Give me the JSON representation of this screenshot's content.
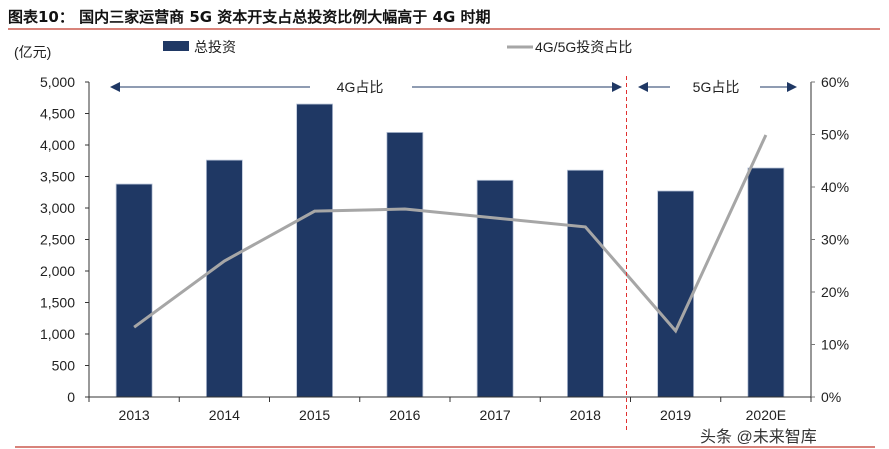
{
  "title": "图表10： 国内三家运营商 5G 资本开支占总投资比例大幅高于 4G 时期",
  "watermark": "头条 @未来智库",
  "chart_data": {
    "type": "bar+line",
    "categories": [
      "2013",
      "2014",
      "2015",
      "2016",
      "2017",
      "2018",
      "2019",
      "2020E"
    ],
    "ylabel": "(亿元)",
    "ylim": [
      0,
      5000
    ],
    "yticks": [
      "0",
      "500",
      "1,000",
      "1,500",
      "2,000",
      "2,500",
      "3,000",
      "3,500",
      "4,000",
      "4,500",
      "5,000"
    ],
    "y2lim": [
      0,
      60
    ],
    "y2ticks": [
      "0%",
      "10%",
      "20%",
      "30%",
      "40%",
      "50%",
      "60%"
    ],
    "legend_position": "top",
    "grid": false,
    "series": [
      {
        "name": "总投资",
        "type": "bar",
        "axis": "left",
        "color": "#1f3864",
        "values": [
          3380,
          3760,
          4650,
          4200,
          3440,
          3600,
          3270,
          3635
        ]
      },
      {
        "name": "4G/5G投资占比",
        "type": "line",
        "axis": "right",
        "color": "#a6a6a6",
        "values": [
          13.3,
          25.9,
          35.4,
          35.8,
          34.1,
          32.4,
          12.6,
          49.9
        ]
      }
    ],
    "annotations": {
      "left": "4G占比",
      "right": "5G占比",
      "divider_color": "#e03030"
    }
  }
}
